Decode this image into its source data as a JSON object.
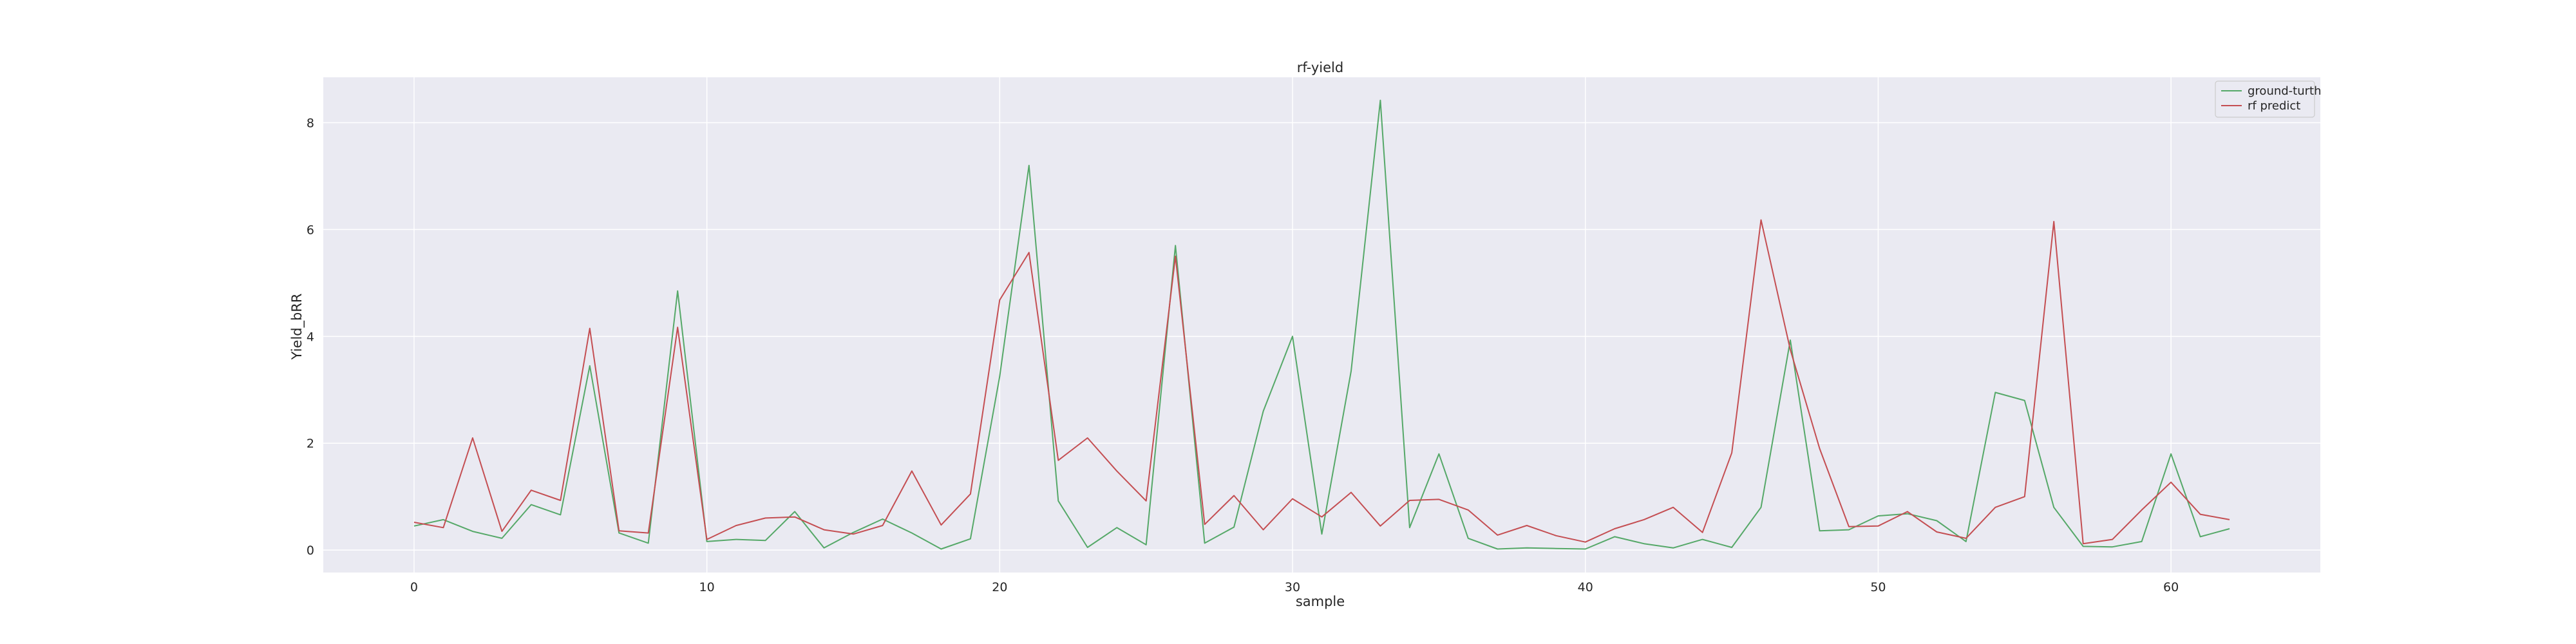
{
  "chart_data": {
    "type": "line",
    "title": "rf-yield",
    "xlabel": "sample",
    "ylabel": "Yield_bRR",
    "xlim": [
      -3.1,
      65.1
    ],
    "ylim": [
      -0.42,
      8.85
    ],
    "xticks": [
      0,
      10,
      20,
      30,
      40,
      50,
      60
    ],
    "yticks": [
      0,
      2,
      4,
      6,
      8
    ],
    "grid": true,
    "legend_position": "top-right",
    "background": "#eaeaf2",
    "x": [
      0,
      1,
      2,
      3,
      4,
      5,
      6,
      7,
      8,
      9,
      10,
      11,
      12,
      13,
      14,
      15,
      16,
      17,
      18,
      19,
      20,
      21,
      22,
      23,
      24,
      25,
      26,
      27,
      28,
      29,
      30,
      31,
      32,
      33,
      34,
      35,
      36,
      37,
      38,
      39,
      40,
      41,
      42,
      43,
      44,
      45,
      46,
      47,
      48,
      49,
      50,
      51,
      52,
      53,
      54,
      55,
      56,
      57,
      58,
      59,
      60,
      61,
      62
    ],
    "series": [
      {
        "name": "ground-turth",
        "color": "#55a868",
        "values": [
          0.45,
          0.57,
          0.35,
          0.22,
          0.85,
          0.66,
          3.45,
          0.32,
          0.13,
          4.85,
          0.16,
          0.2,
          0.18,
          0.72,
          0.04,
          0.33,
          0.58,
          0.32,
          0.02,
          0.21,
          3.25,
          7.2,
          0.92,
          0.05,
          0.42,
          0.1,
          5.7,
          0.13,
          0.43,
          2.6,
          4.0,
          0.3,
          3.35,
          8.42,
          0.42,
          1.8,
          0.22,
          0.02,
          0.04,
          0.03,
          0.02,
          0.25,
          0.12,
          0.04,
          0.2,
          0.05,
          0.8,
          3.93,
          0.36,
          0.38,
          0.64,
          0.68,
          0.55,
          0.16,
          2.95,
          2.8,
          0.8,
          0.07,
          0.06,
          0.16,
          1.8,
          0.25,
          0.4
        ]
      },
      {
        "name": "rf predict",
        "color": "#c44e52",
        "values": [
          0.52,
          0.42,
          2.1,
          0.35,
          1.12,
          0.93,
          4.15,
          0.36,
          0.32,
          4.17,
          0.2,
          0.46,
          0.6,
          0.62,
          0.38,
          0.3,
          0.46,
          1.48,
          0.47,
          1.05,
          4.68,
          5.57,
          1.68,
          2.1,
          1.48,
          0.92,
          5.5,
          0.48,
          1.02,
          0.38,
          0.96,
          0.62,
          1.08,
          0.45,
          0.93,
          0.95,
          0.75,
          0.28,
          0.46,
          0.27,
          0.15,
          0.4,
          0.57,
          0.8,
          0.33,
          1.82,
          6.18,
          3.75,
          1.9,
          0.44,
          0.45,
          0.72,
          0.34,
          0.22,
          0.8,
          1.0,
          6.15,
          0.12,
          0.2,
          0.75,
          1.27,
          0.67,
          0.57
        ]
      }
    ]
  }
}
